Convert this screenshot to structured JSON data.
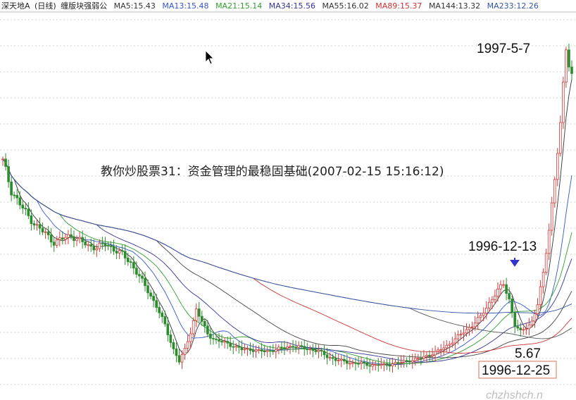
{
  "header": {
    "stock_name": "深天地A",
    "period": "(日线)",
    "indicator_name": "缠版块强弱公",
    "ma_labels": [
      {
        "text": "MA5:15.43",
        "color": "#333333"
      },
      {
        "text": "MA13:15.48",
        "color": "#3355cc"
      },
      {
        "text": "MA21:15.14",
        "color": "#2e9e2e"
      },
      {
        "text": "MA34:15.56",
        "color": "#333399"
      },
      {
        "text": "MA55:16.02",
        "color": "#333333"
      },
      {
        "text": "MA89:15.37",
        "color": "#cc3333"
      },
      {
        "text": "MA144:13.32",
        "color": "#333333"
      },
      {
        "text": "MA233:12.26",
        "color": "#3355aa"
      }
    ]
  },
  "title": "教你炒股票31：资金管理的最稳固基础(2007-02-15 15:16:12)",
  "watermark": "chzhshch.n",
  "chart_data": {
    "type": "line",
    "title": "教你炒股票31：资金管理的最稳固基础(2007-02-15 15:16:12)",
    "xlabel": "",
    "ylabel": "",
    "grid": true,
    "ylim": [
      4,
      26
    ],
    "x_index_range": [
      0,
      200
    ],
    "series": [
      {
        "name": "",
        "color": "#2e8b2e",
        "values": [
          [
            0,
            17.5
          ],
          [
            3,
            15.8
          ],
          [
            6,
            15.0
          ],
          [
            9,
            14.3
          ],
          [
            12,
            13.7
          ],
          [
            15,
            13.3
          ],
          [
            18,
            12.8
          ],
          [
            21,
            13.0
          ],
          [
            24,
            13.2
          ],
          [
            27,
            12.9
          ],
          [
            30,
            12.6
          ],
          [
            33,
            12.5
          ],
          [
            36,
            12.7
          ],
          [
            39,
            12.4
          ],
          [
            42,
            12.1
          ],
          [
            45,
            11.6
          ],
          [
            48,
            10.8
          ],
          [
            51,
            10.0
          ],
          [
            54,
            9.1
          ],
          [
            57,
            8.0
          ],
          [
            60,
            6.6
          ],
          [
            62,
            5.9
          ],
          [
            64,
            6.6
          ],
          [
            66,
            7.6
          ],
          [
            68,
            8.9
          ],
          [
            70,
            8.2
          ],
          [
            72,
            7.5
          ],
          [
            75,
            7.1
          ],
          [
            78,
            7.0
          ],
          [
            81,
            6.8
          ],
          [
            84,
            6.6
          ],
          [
            87,
            6.6
          ],
          [
            90,
            6.5
          ],
          [
            93,
            6.5
          ],
          [
            96,
            6.6
          ],
          [
            99,
            6.7
          ],
          [
            102,
            6.8
          ],
          [
            105,
            6.7
          ],
          [
            108,
            6.6
          ],
          [
            111,
            6.5
          ],
          [
            114,
            6.2
          ],
          [
            117,
            6.0
          ],
          [
            120,
            5.9
          ],
          [
            123,
            5.8
          ],
          [
            126,
            5.8
          ],
          [
            129,
            5.7
          ],
          [
            132,
            5.7
          ],
          [
            135,
            5.7
          ],
          [
            138,
            5.8
          ],
          [
            141,
            5.9
          ],
          [
            144,
            6.0
          ],
          [
            147,
            6.1
          ],
          [
            150,
            6.3
          ],
          [
            153,
            6.5
          ],
          [
            156,
            6.8
          ],
          [
            159,
            7.2
          ],
          [
            162,
            7.6
          ],
          [
            165,
            8.0
          ],
          [
            168,
            8.5
          ],
          [
            171,
            9.3
          ],
          [
            174,
            10.0
          ],
          [
            176,
            10.4
          ],
          [
            178,
            9.5
          ],
          [
            180,
            8.0
          ],
          [
            182,
            7.6
          ],
          [
            184,
            7.9
          ],
          [
            186,
            8.2
          ],
          [
            188,
            9.2
          ],
          [
            190,
            11.0
          ],
          [
            192,
            13.6
          ],
          [
            194,
            16.4
          ],
          [
            196,
            19.6
          ],
          [
            198,
            24.1
          ],
          [
            200,
            22.5
          ]
        ]
      }
    ],
    "annotations": [
      {
        "text": "1997-5-7"
      },
      {
        "text": "1996-12-13"
      },
      {
        "text": "5.67"
      },
      {
        "text": "1996-12-25"
      }
    ]
  }
}
